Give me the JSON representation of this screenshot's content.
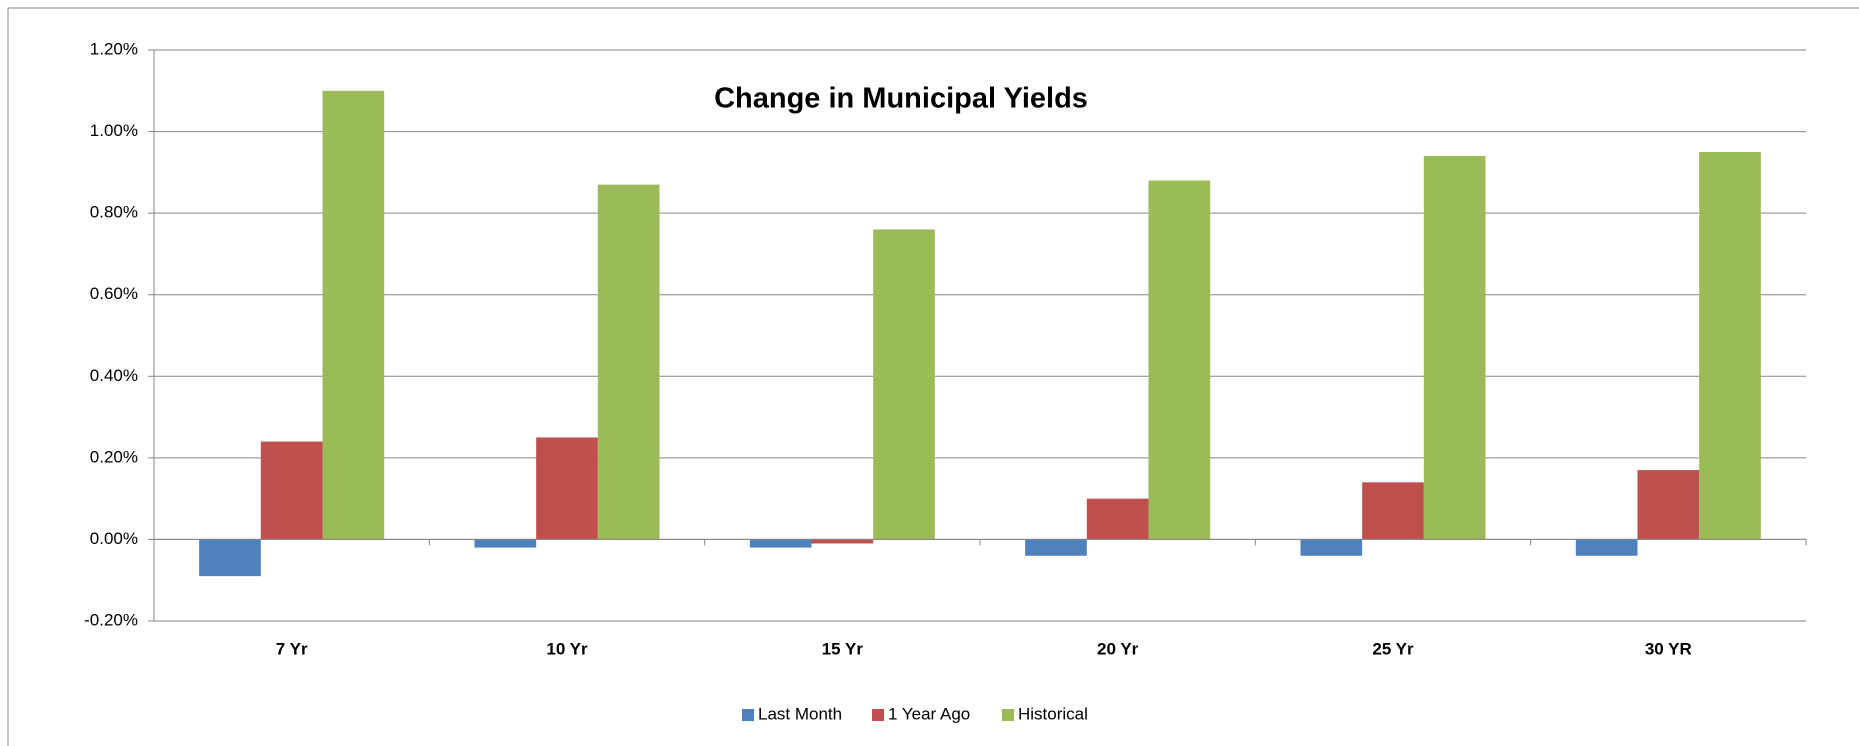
{
  "chart_data": {
    "type": "bar",
    "title": "Change in Municipal Yields",
    "categories": [
      "7 Yr",
      "10 Yr",
      "15 Yr",
      "20 Yr",
      "25 Yr",
      "30 YR"
    ],
    "series": [
      {
        "name": "Last Month",
        "color": "#4f81bd",
        "values": [
          -0.09,
          -0.02,
          -0.02,
          -0.04,
          -0.04,
          -0.04
        ]
      },
      {
        "name": "1 Year Ago",
        "color": "#c0504d",
        "values": [
          0.24,
          0.25,
          -0.01,
          0.1,
          0.14,
          0.17
        ]
      },
      {
        "name": "Historical",
        "color": "#9bbb59",
        "values": [
          1.1,
          0.87,
          0.76,
          0.88,
          0.94,
          0.95
        ]
      }
    ],
    "ylim": [
      -0.2,
      1.2
    ],
    "yticks": [
      {
        "value": -0.2,
        "label": "-0.20%"
      },
      {
        "value": 0,
        "label": "0.00%"
      },
      {
        "value": 0.2,
        "label": "0.20%"
      },
      {
        "value": 0.4,
        "label": "0.40%"
      },
      {
        "value": 0.6,
        "label": "0.60%"
      },
      {
        "value": 0.8,
        "label": "0.80%"
      },
      {
        "value": 1.0,
        "label": "1.00%"
      },
      {
        "value": 1.2,
        "label": "1.20%"
      }
    ],
    "grid": true,
    "legend": "bottom"
  }
}
